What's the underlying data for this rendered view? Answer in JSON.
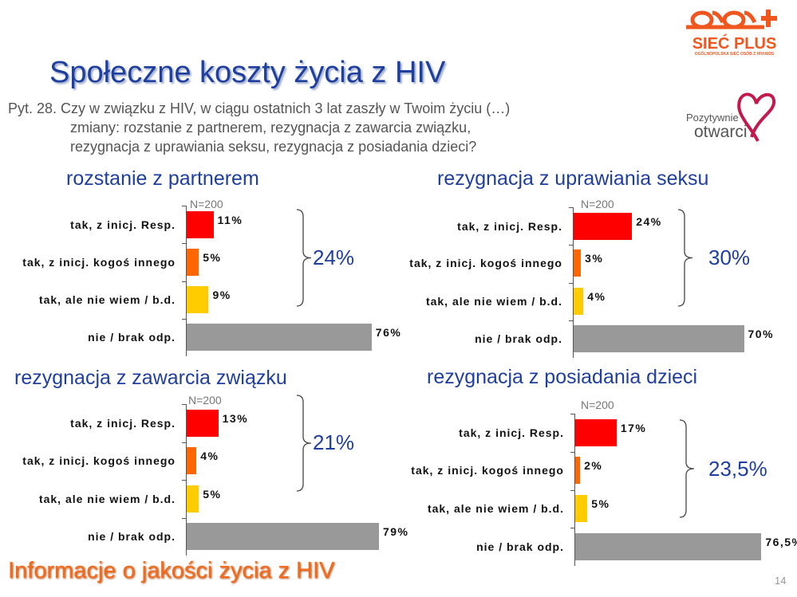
{
  "header": {
    "title": "Społeczne koszty życia z HIV",
    "question": [
      "Pyt. 28. Czy w związku z HIV, w ciągu ostatnich 3 lat zaszły w Twoim życiu (…)",
      "zmiany: rozstanie z partnerem, rezygnacja z zawarcia związku,",
      "rezygnacja z uprawiania seksu, rezygnacja z posiadania dzieci?"
    ]
  },
  "logos": {
    "siec_plus": "SIEĆ PLUS",
    "siec_plus_sub": "OGÓLNOPOLSKA SIEĆ OSÓB Z HIV/AIDS",
    "pozytywnie": "Pozytywnie",
    "otwarci": "otwarci"
  },
  "footer": {
    "title": "Informacje o jakości życia z HIV",
    "page": "14"
  },
  "colors": {
    "resp": "#ff0000",
    "inny": "#ff6600",
    "bd": "#ffcc00",
    "nie": "#999999",
    "accent": "#1f3f9f"
  },
  "chart_data": [
    {
      "type": "bar",
      "orientation": "horizontal",
      "title": "rozstanie z partnerem",
      "n": "N=200",
      "categories": [
        "tak, z inicj. Resp.",
        "tak, z inicj. kogoś innego",
        "tak, ale nie wiem /  b.d.",
        "nie /  brak odp."
      ],
      "values": [
        11,
        5,
        9,
        76
      ],
      "value_labels": [
        "11%",
        "5%",
        "9%",
        "76%"
      ],
      "total_label": "24%"
    },
    {
      "type": "bar",
      "orientation": "horizontal",
      "title": "rezygnacja z uprawiania seksu",
      "n": "N=200",
      "categories": [
        "tak, z inicj. Resp.",
        "tak, z inicj. kogoś innego",
        "tak, ale nie wiem /  b.d.",
        "nie /  brak odp."
      ],
      "values": [
        24,
        3,
        4,
        70
      ],
      "value_labels": [
        "24%",
        "3%",
        "4%",
        "70%"
      ],
      "total_label": "30%"
    },
    {
      "type": "bar",
      "orientation": "horizontal",
      "title": "rezygnacja z zawarcia związku",
      "n": "N=200",
      "categories": [
        "tak, z inicj. Resp.",
        "tak, z inicj. kogoś innego",
        "tak, ale nie wiem /  b.d.",
        "nie /  brak odp."
      ],
      "values": [
        13,
        4,
        5,
        79
      ],
      "value_labels": [
        "13%",
        "4%",
        "5%",
        "79%"
      ],
      "total_label": "21%"
    },
    {
      "type": "bar",
      "orientation": "horizontal",
      "title": "rezygnacja z posiadania dzieci",
      "n": "N=200",
      "categories": [
        "tak, z inicj. Resp.",
        "tak, z inicj. kogoś innego",
        "tak, ale nie wiem /  b.d.",
        "nie /  brak odp."
      ],
      "values": [
        17,
        2,
        5,
        76.5
      ],
      "value_labels": [
        "17%",
        "2%",
        "5%",
        "76,5%"
      ],
      "total_label": "23,5%"
    }
  ]
}
